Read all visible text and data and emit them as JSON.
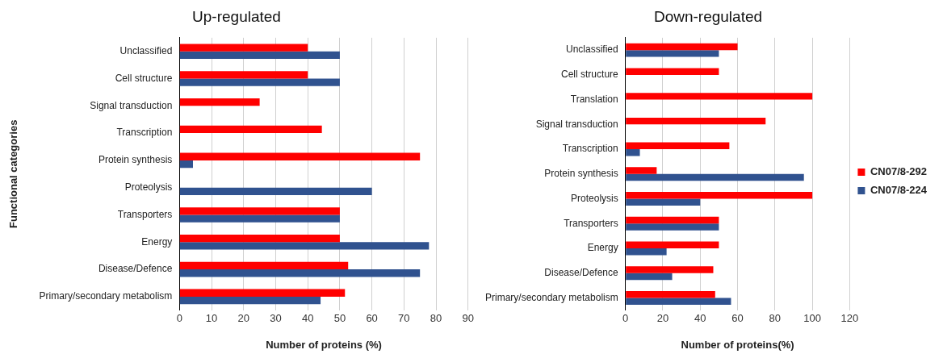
{
  "chart_data": [
    {
      "type": "bar",
      "orientation": "horizontal",
      "title": "Up-regulated",
      "xlabel": "Number of proteins (%)",
      "ylabel": "Functional categories",
      "categories": [
        "Unclassified",
        "Cell structure",
        "Signal transduction",
        "Transcription",
        "Protein synthesis",
        "Proteolysis",
        "Transporters",
        "Energy",
        "Disease/Defence",
        "Primary/secondary metabolism"
      ],
      "series": [
        {
          "color": "#ff0000",
          "values": [
            40,
            40,
            25,
            44.4,
            75,
            null,
            50,
            50,
            52.6,
            51.6
          ]
        },
        {
          "color": "#30528f",
          "values": [
            50,
            50,
            null,
            null,
            4.2,
            60,
            50,
            77.8,
            75,
            44
          ]
        }
      ],
      "xlim": [
        0,
        90
      ],
      "xticks": [
        0,
        10,
        20,
        30,
        40,
        50,
        60,
        70,
        80,
        90
      ],
      "grid": "x",
      "legend": false
    },
    {
      "type": "bar",
      "orientation": "horizontal",
      "title": "Down-regulated",
      "xlabel": "Number of proteins(%)",
      "categories": [
        "Unclassified",
        "Cell structure",
        "Translation",
        "Signal transduction",
        "Transcription",
        "Protein synthesis",
        "Proteolysis",
        "Transporters",
        "Energy",
        "Disease/Defence",
        "Primary/secondary metabolism"
      ],
      "series": [
        {
          "name": "CN07/8-292",
          "color": "#ff0000",
          "values": [
            60,
            50,
            100,
            75,
            55.6,
            16.7,
            100,
            50,
            50,
            47,
            48
          ]
        },
        {
          "name": "CN07/8-224",
          "color": "#30528f",
          "values": [
            50,
            null,
            null,
            null,
            7.7,
            95.5,
            40,
            50,
            22,
            25,
            56.5
          ]
        }
      ],
      "xlim": [
        0,
        120
      ],
      "xticks": [
        0,
        20,
        40,
        60,
        80,
        100,
        120
      ],
      "grid": "x",
      "legend": "right"
    }
  ]
}
